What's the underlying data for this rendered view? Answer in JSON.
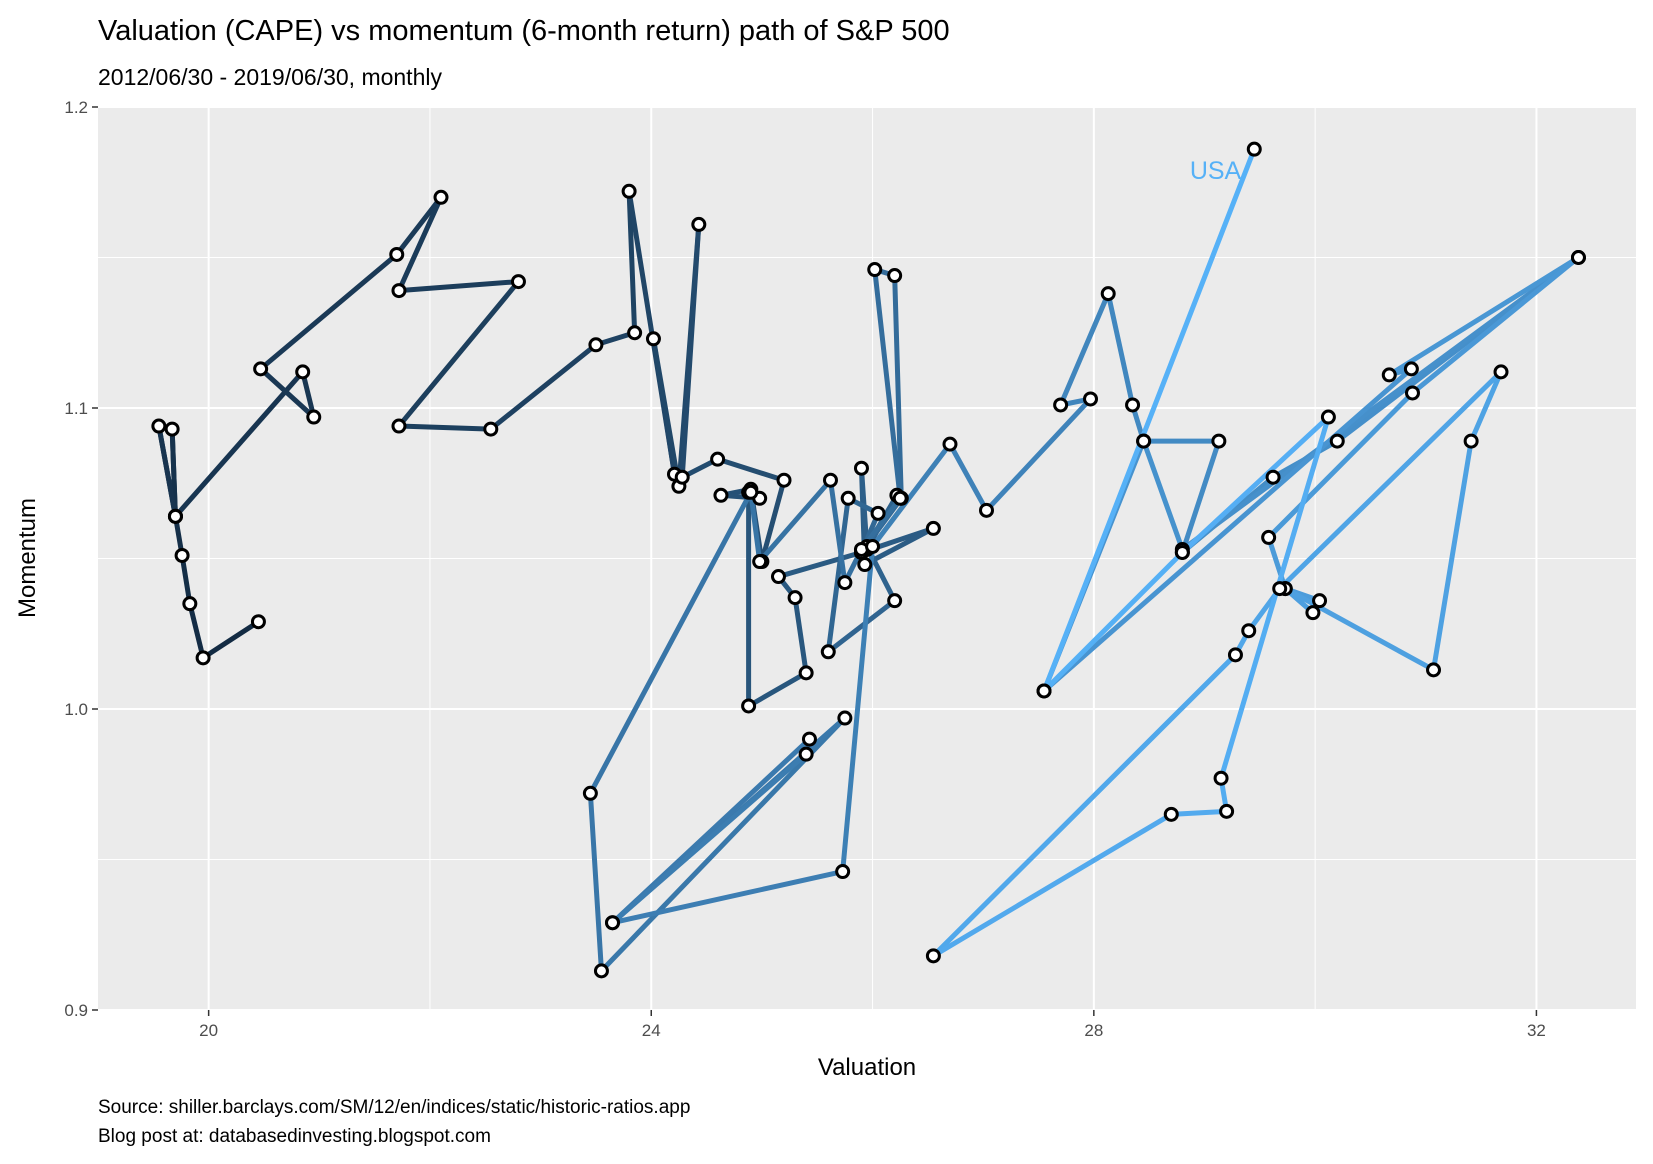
{
  "chart_data": {
    "type": "line",
    "title": "Valuation (CAPE) vs momentum (6-month return) path of S&P 500",
    "subtitle": "2012/06/30 - 2019/06/30, monthly",
    "xlabel": "Valuation",
    "ylabel": "Momentum",
    "xlim": [
      19,
      32.9
    ],
    "ylim": [
      0.9,
      1.2
    ],
    "x_ticks": [
      20,
      24,
      28,
      32
    ],
    "y_ticks": [
      0.9,
      1.0,
      1.1,
      1.2
    ],
    "x_tick_labels": [
      "20",
      "24",
      "28",
      "32"
    ],
    "y_tick_labels": [
      "0.9",
      "1.0",
      "1.1",
      "1.2"
    ],
    "grid": true,
    "line_color_start": "#132B43",
    "line_color_end": "#56B1F7",
    "panel_background": "#EBEBEB",
    "annotation": {
      "text": "USA",
      "x": 29.1,
      "y": 1.179,
      "color": "#56B1F7"
    },
    "captions": [
      "Source: shiller.barclays.com/SM/12/en/indices/static/historic-ratios.app",
      "Blog post at: databasedinvesting.blogspot.com"
    ],
    "series": [
      {
        "points": [
          [
            20.45,
            1.029
          ],
          [
            19.95,
            1.017
          ],
          [
            19.83,
            1.035
          ],
          [
            19.76,
            1.051
          ],
          [
            19.7,
            1.064
          ],
          [
            19.67,
            1.093
          ],
          [
            19.7,
            1.064
          ],
          [
            19.55,
            1.094
          ],
          [
            19.7,
            1.064
          ],
          [
            20.85,
            1.112
          ],
          [
            20.95,
            1.097
          ],
          [
            20.47,
            1.113
          ],
          [
            21.7,
            1.151
          ],
          [
            22.1,
            1.17
          ],
          [
            21.72,
            1.139
          ],
          [
            22.8,
            1.142
          ],
          [
            21.72,
            1.094
          ],
          [
            22.55,
            1.093
          ],
          [
            23.5,
            1.121
          ],
          [
            23.85,
            1.125
          ],
          [
            23.8,
            1.172
          ],
          [
            24.21,
            1.078
          ],
          [
            24.02,
            1.123
          ],
          [
            24.25,
            1.074
          ],
          [
            24.43,
            1.161
          ],
          [
            24.28,
            1.077
          ],
          [
            24.6,
            1.083
          ],
          [
            25.2,
            1.076
          ],
          [
            25.0,
            1.049
          ],
          [
            24.9,
            1.073
          ],
          [
            24.63,
            1.071
          ],
          [
            24.98,
            1.07
          ],
          [
            24.88,
            1.072
          ],
          [
            24.88,
            1.001
          ],
          [
            25.4,
            1.012
          ],
          [
            25.3,
            1.037
          ],
          [
            25.15,
            1.044
          ],
          [
            25.9,
            1.052
          ],
          [
            26.55,
            1.06
          ],
          [
            25.93,
            1.048
          ],
          [
            25.9,
            1.08
          ],
          [
            25.95,
            1.053
          ],
          [
            26.22,
            1.071
          ],
          [
            25.95,
            1.054
          ],
          [
            26.2,
            1.036
          ],
          [
            25.6,
            1.019
          ],
          [
            25.78,
            1.07
          ],
          [
            26.05,
            1.065
          ],
          [
            25.9,
            1.052
          ],
          [
            26.26,
            1.07
          ],
          [
            26.2,
            1.144
          ],
          [
            26.02,
            1.146
          ],
          [
            26.25,
            1.07
          ],
          [
            25.9,
            1.053
          ],
          [
            25.75,
            1.042
          ],
          [
            25.62,
            1.076
          ],
          [
            24.98,
            1.049
          ],
          [
            24.9,
            1.072
          ],
          [
            23.45,
            0.972
          ],
          [
            23.55,
            0.913
          ],
          [
            25.75,
            0.997
          ],
          [
            23.65,
            0.929
          ],
          [
            25.43,
            0.99
          ],
          [
            25.4,
            0.985
          ],
          [
            23.65,
            0.929
          ],
          [
            25.73,
            0.946
          ],
          [
            26.0,
            1.054
          ],
          [
            26.7,
            1.088
          ],
          [
            27.03,
            1.066
          ],
          [
            27.97,
            1.103
          ],
          [
            27.7,
            1.101
          ],
          [
            28.13,
            1.138
          ],
          [
            28.35,
            1.101
          ],
          [
            28.45,
            1.089
          ],
          [
            29.13,
            1.089
          ],
          [
            28.8,
            1.052
          ],
          [
            29.62,
            1.077
          ],
          [
            30.2,
            1.089
          ],
          [
            32.38,
            1.15
          ],
          [
            28.8,
            1.053
          ],
          [
            28.45,
            1.089
          ],
          [
            27.55,
            1.006
          ],
          [
            30.87,
            1.113
          ],
          [
            30.67,
            1.111
          ],
          [
            32.38,
            1.15
          ],
          [
            30.88,
            1.105
          ],
          [
            29.58,
            1.057
          ],
          [
            29.73,
            1.04
          ],
          [
            30.04,
            1.036
          ],
          [
            29.98,
            1.032
          ],
          [
            29.73,
            1.04
          ],
          [
            31.07,
            1.013
          ],
          [
            31.41,
            1.089
          ],
          [
            31.68,
            1.112
          ],
          [
            29.68,
            1.04
          ],
          [
            29.4,
            1.026
          ],
          [
            29.28,
            1.018
          ],
          [
            26.55,
            0.918
          ],
          [
            28.7,
            0.965
          ],
          [
            29.2,
            0.966
          ],
          [
            29.15,
            0.977
          ],
          [
            30.12,
            1.097
          ],
          [
            28.8,
            1.052
          ],
          [
            27.55,
            1.006
          ],
          [
            29.45,
            1.186
          ]
        ]
      }
    ]
  }
}
